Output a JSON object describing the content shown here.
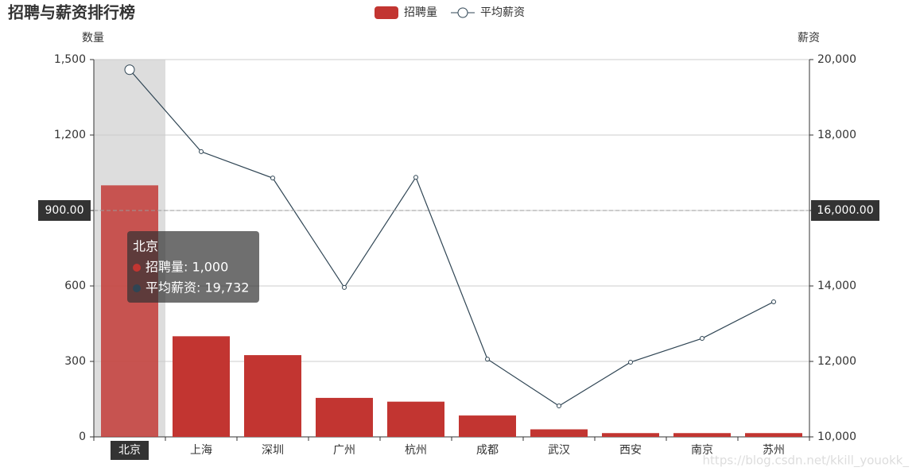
{
  "chart_data": {
    "type": "bar-line",
    "title": "招聘与薪资排行榜",
    "categories": [
      "北京",
      "上海",
      "深圳",
      "广州",
      "杭州",
      "成都",
      "武汉",
      "西安",
      "南京",
      "苏州"
    ],
    "series": [
      {
        "name": "招聘量",
        "type": "bar",
        "color": "#c23531",
        "values": [
          1000,
          400,
          325,
          155,
          140,
          85,
          30,
          15,
          15,
          15
        ]
      },
      {
        "name": "平均薪资",
        "type": "line",
        "axis": "y2",
        "color": "#2f4554",
        "values": [
          19732,
          17560,
          16860,
          13960,
          16880,
          12060,
          10820,
          11980,
          12610,
          13580
        ]
      }
    ],
    "ylabel": "数量",
    "y2label": "薪资",
    "ylim": [
      0,
      1500
    ],
    "yticks": [
      0,
      300,
      600,
      {
        "value": 900,
        "label": "900"
      },
      {
        "value": 1200,
        "label": "1,200"
      },
      {
        "value": 1500,
        "label": "1,500"
      }
    ],
    "y2lim": [
      10000,
      20000
    ],
    "y2ticks": [
      {
        "value": 10000,
        "label": "10,000"
      },
      {
        "value": 12000,
        "label": "12,000"
      },
      {
        "value": 14000,
        "label": "14,000"
      },
      {
        "value": 16000,
        "label": "16,000"
      },
      {
        "value": 18000,
        "label": "18,000"
      },
      {
        "value": 20000,
        "label": "20,000"
      }
    ],
    "grid": true,
    "legend": "top",
    "highlight_index": 0,
    "axis_pointer": {
      "y": {
        "value": 900,
        "label": "900.00"
      },
      "y2": {
        "value": 16000,
        "label": "16,000.00"
      }
    },
    "tooltip": {
      "title": "北京",
      "items": [
        "招聘量: 1,000",
        "平均薪资: 19,732"
      ]
    },
    "watermark": "https://blog.csdn.net/kkill_youokk_"
  }
}
